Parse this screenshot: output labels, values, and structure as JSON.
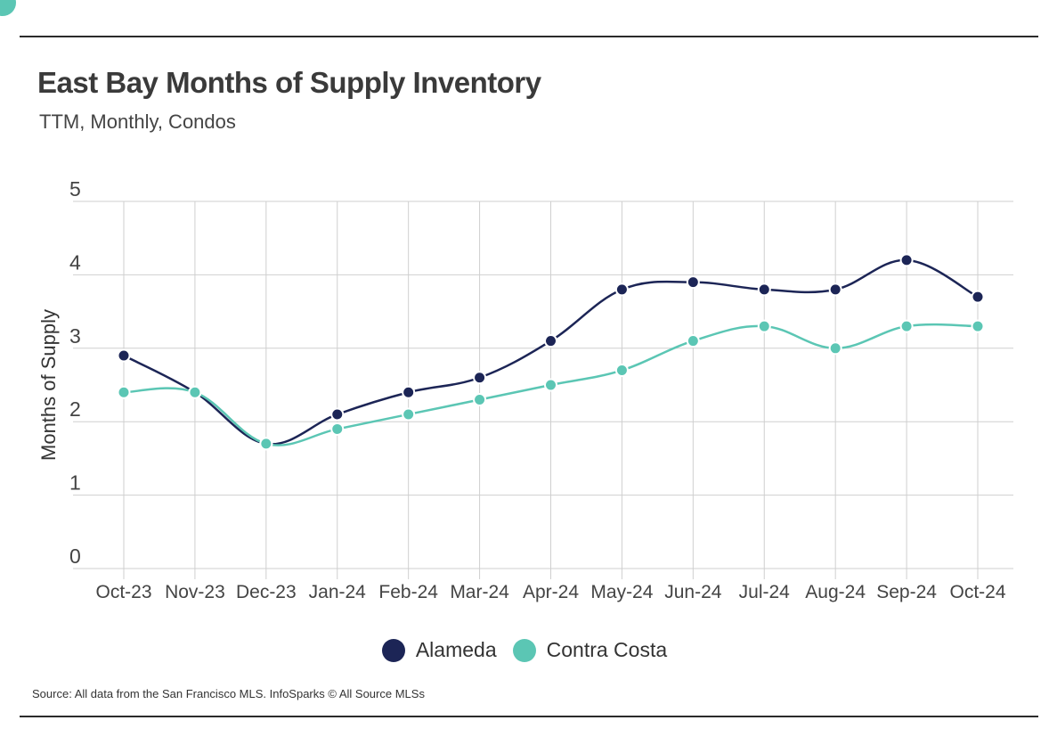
{
  "header": {
    "title": "East Bay Months of Supply Inventory",
    "subtitle": "TTM, Monthly, Condos"
  },
  "footer": {
    "source": "Source:  All data from the San Francisco MLS. InfoSparks © All Source MLSs"
  },
  "colors": {
    "alameda": "#1c2556",
    "contra_costa": "#5bc6b4",
    "grid": "#cfcfcf",
    "corner_accent": "#5bc6b4"
  },
  "chart_data": {
    "type": "line",
    "title": "East Bay Months of Supply Inventory",
    "subtitle": "TTM, Monthly, Condos",
    "xlabel": "",
    "ylabel": "Months of Supply",
    "ylim": [
      0,
      5
    ],
    "yticks": [
      "0",
      "1",
      "2",
      "3",
      "4",
      "5"
    ],
    "grid": true,
    "legend_position": "bottom",
    "categories": [
      "Oct-23",
      "Nov-23",
      "Dec-23",
      "Jan-24",
      "Feb-24",
      "Mar-24",
      "Apr-24",
      "May-24",
      "Jun-24",
      "Jul-24",
      "Aug-24",
      "Sep-24",
      "Oct-24"
    ],
    "series": [
      {
        "name": "Alameda",
        "color": "#1c2556",
        "values": [
          2.9,
          2.4,
          1.7,
          2.1,
          2.4,
          2.6,
          3.1,
          3.8,
          3.9,
          3.8,
          3.8,
          4.2,
          3.7
        ]
      },
      {
        "name": "Contra Costa",
        "color": "#5bc6b4",
        "values": [
          2.4,
          2.4,
          1.7,
          1.9,
          2.1,
          2.3,
          2.5,
          2.7,
          3.1,
          3.3,
          3.0,
          3.3,
          3.3
        ]
      }
    ]
  }
}
